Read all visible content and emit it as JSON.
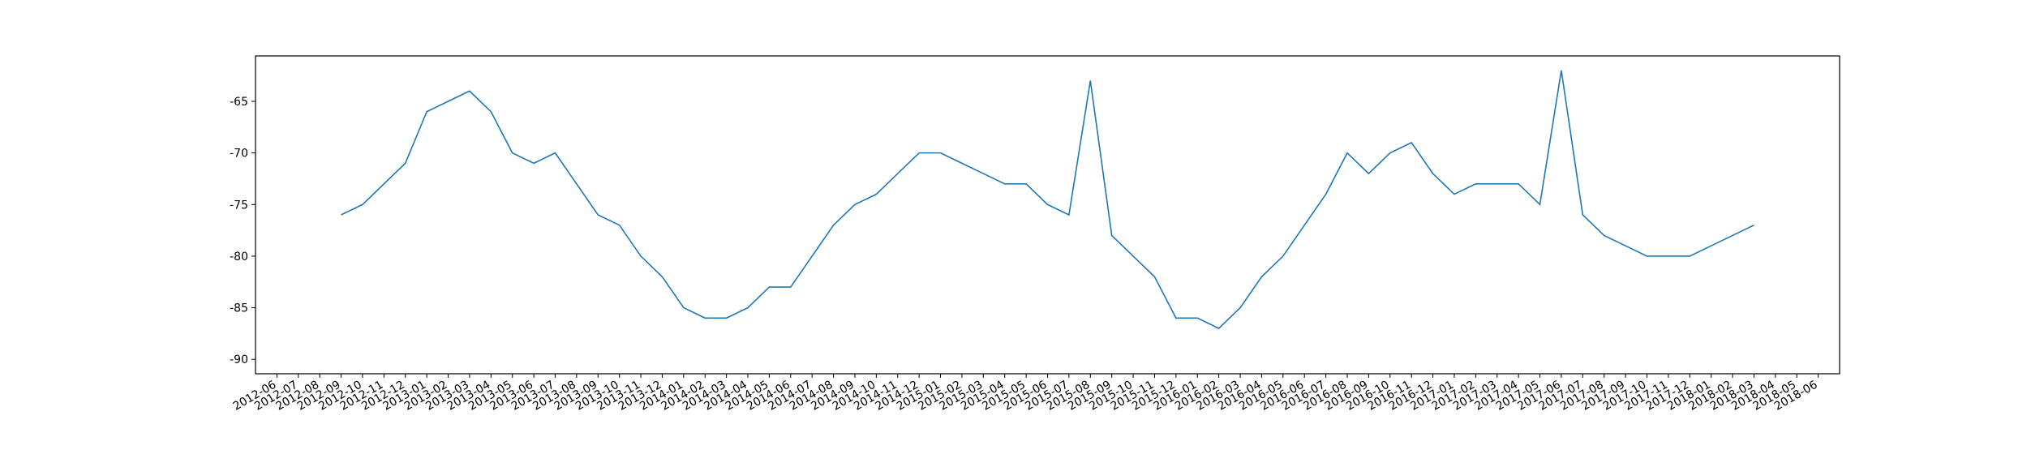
{
  "chart_data": {
    "type": "line",
    "x": [
      "2012-09",
      "2012-10",
      "2012-11",
      "2012-12",
      "2013-01",
      "2013-02",
      "2013-03",
      "2013-04",
      "2013-05",
      "2013-06",
      "2013-07",
      "2013-08",
      "2013-09",
      "2013-10",
      "2013-11",
      "2013-12",
      "2014-01",
      "2014-02",
      "2014-03",
      "2014-04",
      "2014-05",
      "2014-06",
      "2014-07",
      "2014-08",
      "2014-09",
      "2014-10",
      "2014-11",
      "2014-12",
      "2015-01",
      "2015-02",
      "2015-03",
      "2015-04",
      "2015-05",
      "2015-06",
      "2015-07",
      "2015-08",
      "2015-09",
      "2015-10",
      "2015-11",
      "2015-12",
      "2016-01",
      "2016-02",
      "2016-03",
      "2016-04",
      "2016-05",
      "2016-06",
      "2016-07",
      "2016-08",
      "2016-09",
      "2016-10",
      "2016-11",
      "2016-12",
      "2017-01",
      "2017-02",
      "2017-03",
      "2017-04",
      "2017-05",
      "2017-06",
      "2017-07",
      "2017-08",
      "2017-09",
      "2017-10",
      "2017-11",
      "2017-12",
      "2018-01",
      "2018-02",
      "2018-03"
    ],
    "series": [
      {
        "color": "#1f77b4",
        "values": [
          -76,
          -75,
          -73,
          -71,
          -66,
          -65,
          -64,
          -66,
          -70,
          -71,
          -70,
          -73,
          -76,
          -77,
          -80,
          -82,
          -85,
          -86,
          -86,
          -85,
          -83,
          -83,
          -80,
          -77,
          -75,
          -74,
          -72,
          -70,
          -70,
          -71,
          -72,
          -73,
          -73,
          -75,
          -76,
          -63,
          -78,
          -80,
          -82,
          -86,
          -86,
          -87,
          -85,
          -82,
          -80,
          -77,
          -74,
          -70,
          -72,
          -70,
          -69,
          -72,
          -74,
          -73,
          -73,
          -73,
          -75,
          -62,
          -76,
          -78,
          -79,
          -80,
          -80,
          -80,
          -79,
          -78,
          -77
        ]
      }
    ],
    "xlim": [
      "2012-05",
      "2018-07"
    ],
    "xticks": [
      "2012-06",
      "2012-07",
      "2012-08",
      "2012-09",
      "2012-10",
      "2012-11",
      "2012-12",
      "2013-01",
      "2013-02",
      "2013-03",
      "2013-04",
      "2013-05",
      "2013-06",
      "2013-07",
      "2013-08",
      "2013-09",
      "2013-10",
      "2013-11",
      "2013-12",
      "2014-01",
      "2014-02",
      "2014-03",
      "2014-04",
      "2014-05",
      "2014-06",
      "2014-07",
      "2014-08",
      "2014-09",
      "2014-10",
      "2014-11",
      "2014-12",
      "2015-01",
      "2015-02",
      "2015-03",
      "2015-04",
      "2015-05",
      "2015-06",
      "2015-07",
      "2015-08",
      "2015-09",
      "2015-10",
      "2015-11",
      "2015-12",
      "2016-01",
      "2016-02",
      "2016-03",
      "2016-04",
      "2016-05",
      "2016-06",
      "2016-07",
      "2016-08",
      "2016-09",
      "2016-10",
      "2016-11",
      "2016-12",
      "2017-01",
      "2017-02",
      "2017-03",
      "2017-04",
      "2017-05",
      "2017-06",
      "2017-07",
      "2017-08",
      "2017-09",
      "2017-10",
      "2017-11",
      "2017-12",
      "2018-01",
      "2018-02",
      "2018-03",
      "2018-04",
      "2018-05",
      "2018-06"
    ],
    "ylim": [
      -91.4,
      -60.6
    ],
    "yticks": [
      -90,
      -85,
      -80,
      -75,
      -70,
      -65
    ]
  }
}
